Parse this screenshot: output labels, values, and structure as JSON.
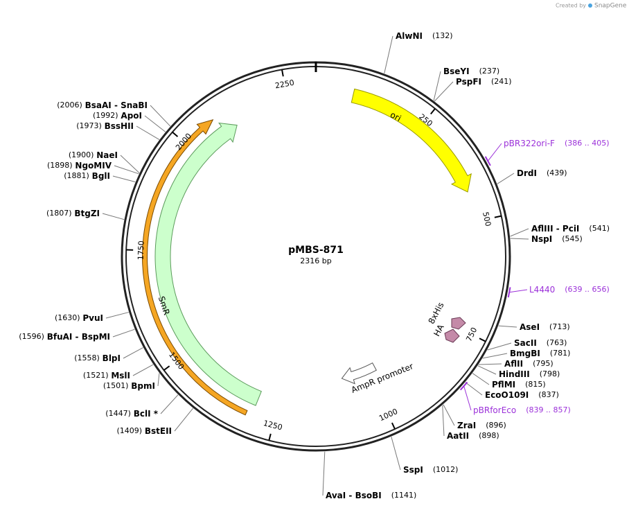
{
  "header": {
    "credit": "Created by",
    "brand": "SnapGene"
  },
  "map": {
    "name": "pMBS-871",
    "length": "2316 bp"
  },
  "ruler": [
    "250",
    "500",
    "750",
    "1000",
    "1250",
    "1500",
    "1750",
    "2000",
    "2250"
  ],
  "sites": [
    {
      "name": "AlwNI",
      "position": "(132)"
    },
    {
      "name": "BseYI",
      "position": "(237)"
    },
    {
      "name": "PspFI",
      "position": "(241)"
    },
    {
      "name": "DrdI",
      "position": "(439)"
    },
    {
      "name": "AflIII - PciI",
      "position": "(541)"
    },
    {
      "name": "NspI",
      "position": "(545)"
    },
    {
      "name": "AseI",
      "position": "(713)"
    },
    {
      "name": "SacII",
      "position": "(763)"
    },
    {
      "name": "BmgBI",
      "position": "(781)"
    },
    {
      "name": "AflII",
      "position": "(795)"
    },
    {
      "name": "HindIII",
      "position": "(798)"
    },
    {
      "name": "PflMI",
      "position": "(815)"
    },
    {
      "name": "EcoO109I",
      "position": "(837)"
    },
    {
      "name": "ZraI",
      "position": "(896)"
    },
    {
      "name": "AatII",
      "position": "(898)"
    },
    {
      "name": "SspI",
      "position": "(1012)"
    },
    {
      "name": "AvaI - BsoBI",
      "position": "(1141)"
    },
    {
      "name": "BstEII",
      "position": "(1409)"
    },
    {
      "name": "BclI *",
      "position": "(1447)"
    },
    {
      "name": "BpmI",
      "position": "(1501)"
    },
    {
      "name": "MslI",
      "position": "(1521)"
    },
    {
      "name": "BlpI",
      "position": "(1558)"
    },
    {
      "name": "BfuAI - BspMI",
      "position": "(1596)"
    },
    {
      "name": "PvuI",
      "position": "(1630)"
    },
    {
      "name": "BtgZI",
      "position": "(1807)"
    },
    {
      "name": "BglI",
      "position": "(1881)"
    },
    {
      "name": "NgoMIV",
      "position": "(1898)"
    },
    {
      "name": "NaeI",
      "position": "(1900)"
    },
    {
      "name": "BssHII",
      "position": "(1973)"
    },
    {
      "name": "ApoI",
      "position": "(1992)"
    },
    {
      "name": "BsaAI - SnaBI",
      "position": "(2006)"
    }
  ],
  "primers": [
    {
      "name": "pBR322ori-F",
      "range": "(386 .. 405)"
    },
    {
      "name": "L4440",
      "range": "(639 .. 656)"
    },
    {
      "name": "pBRforEco",
      "range": "(839 .. 857)"
    }
  ],
  "features": [
    {
      "label": "ori"
    },
    {
      "label": "SmR"
    },
    {
      "label": "AmpR promoter"
    },
    {
      "label": "8xHis"
    },
    {
      "label": "HA"
    }
  ]
}
